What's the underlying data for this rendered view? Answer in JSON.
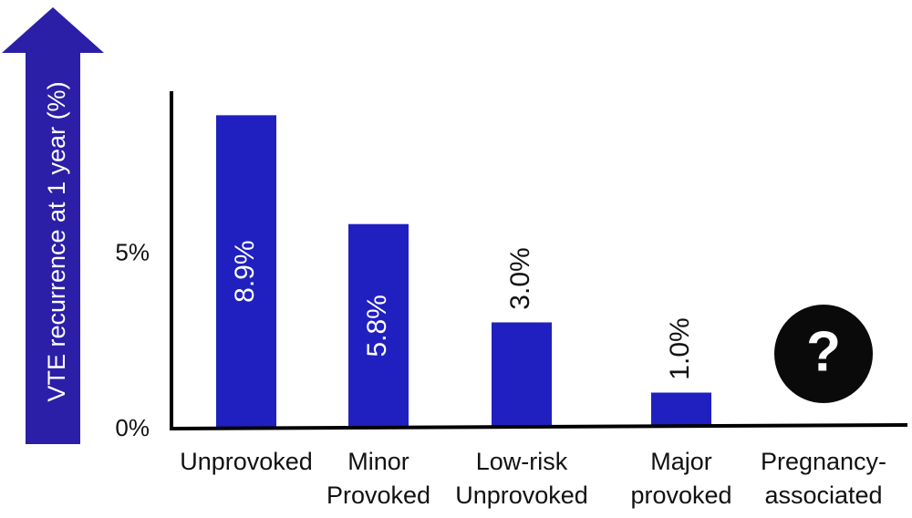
{
  "colors": {
    "bar": "#2020c0",
    "arrow": "#2b1fa8",
    "axis": "#000000",
    "text": "#111111",
    "inbar_text": "#ffffff",
    "unknown_circle": "#0a0a0a"
  },
  "chart_data": {
    "type": "bar",
    "ylabel": "VTE recurrence at 1 year (%)",
    "yticks": [
      "0%",
      "5%"
    ],
    "categories": [
      [
        "Unprovoked"
      ],
      [
        "Minor",
        "Provoked"
      ],
      [
        "Low-risk",
        "Unprovoked"
      ],
      [
        "Major",
        "provoked"
      ],
      [
        "Pregnancy-",
        "associated"
      ]
    ],
    "values": [
      8.9,
      5.8,
      3.0,
      1.0,
      null
    ],
    "data_labels": [
      "8.9%",
      "5.8%",
      "3.0%",
      "1.0%",
      "?"
    ],
    "unknown_icon": "question-mark-circle-icon",
    "ylim": [
      0,
      10
    ]
  }
}
